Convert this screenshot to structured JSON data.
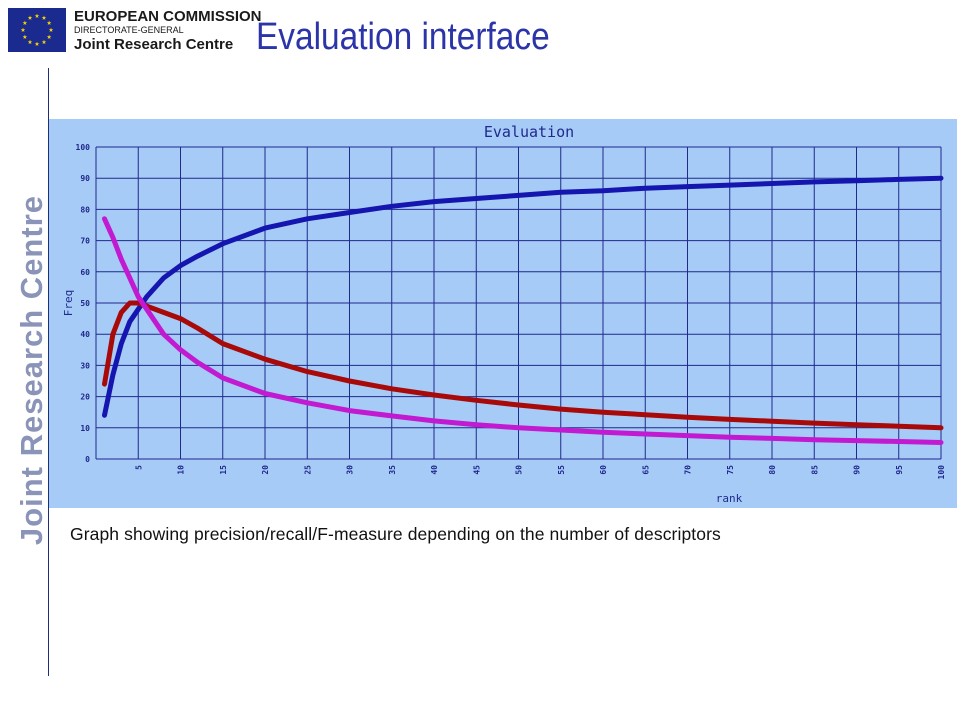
{
  "header": {
    "org_line1": "EUROPEAN COMMISSION",
    "org_line2": "DIRECTORATE-GENERAL",
    "org_line3": "Joint Research Centre",
    "title": "Evaluation interface",
    "side_text": "Joint Research Centre",
    "flag_icon": "eu-flag-icon"
  },
  "caption": "Graph showing precision/recall/F-measure depending on the number of descriptors",
  "colors": {
    "title": "#2b35a8",
    "panel_bg": "#a7cbf7",
    "grid": "#1f2a8c",
    "tick_text": "#1f2a8c",
    "series_blue": "#1515b0",
    "series_red": "#a80a0a",
    "series_magenta": "#c21ad0"
  },
  "chart_data": {
    "type": "line",
    "title": "Evaluation",
    "xlabel": "rank",
    "ylabel": "Freq",
    "xlim": [
      0,
      100
    ],
    "ylim": [
      0,
      100
    ],
    "xticks": [
      5,
      10,
      15,
      20,
      25,
      30,
      35,
      40,
      45,
      50,
      55,
      60,
      65,
      70,
      75,
      80,
      85,
      90,
      95,
      100
    ],
    "yticks": [
      0,
      10,
      20,
      30,
      40,
      50,
      60,
      70,
      80,
      90,
      100
    ],
    "grid": true,
    "x": [
      1,
      2,
      3,
      4,
      5,
      6,
      8,
      10,
      12,
      15,
      20,
      25,
      30,
      35,
      40,
      45,
      50,
      55,
      60,
      65,
      70,
      75,
      80,
      85,
      90,
      95,
      100
    ],
    "series": [
      {
        "color": "#1515b0",
        "values": [
          14,
          27,
          37,
          44,
          48,
          52,
          58,
          62,
          65,
          69,
          74,
          77,
          79,
          81,
          82.5,
          83.5,
          84.5,
          85.5,
          86,
          86.8,
          87.3,
          87.8,
          88.3,
          88.8,
          89.2,
          89.6,
          90
        ]
      },
      {
        "color": "#a80a0a",
        "values": [
          24,
          40,
          47,
          50,
          50,
          49,
          47,
          45,
          42,
          37,
          32,
          28,
          25,
          22.5,
          20.5,
          18.8,
          17.3,
          16,
          15,
          14.2,
          13.4,
          12.7,
          12.1,
          11.5,
          11,
          10.5,
          10
        ]
      },
      {
        "color": "#c21ad0",
        "values": [
          77,
          71,
          64,
          58,
          52,
          48,
          40,
          35,
          31,
          26,
          21,
          18,
          15.5,
          13.8,
          12.2,
          11,
          10,
          9.3,
          8.6,
          8,
          7.5,
          7,
          6.6,
          6.2,
          5.9,
          5.6,
          5.3
        ]
      }
    ]
  }
}
